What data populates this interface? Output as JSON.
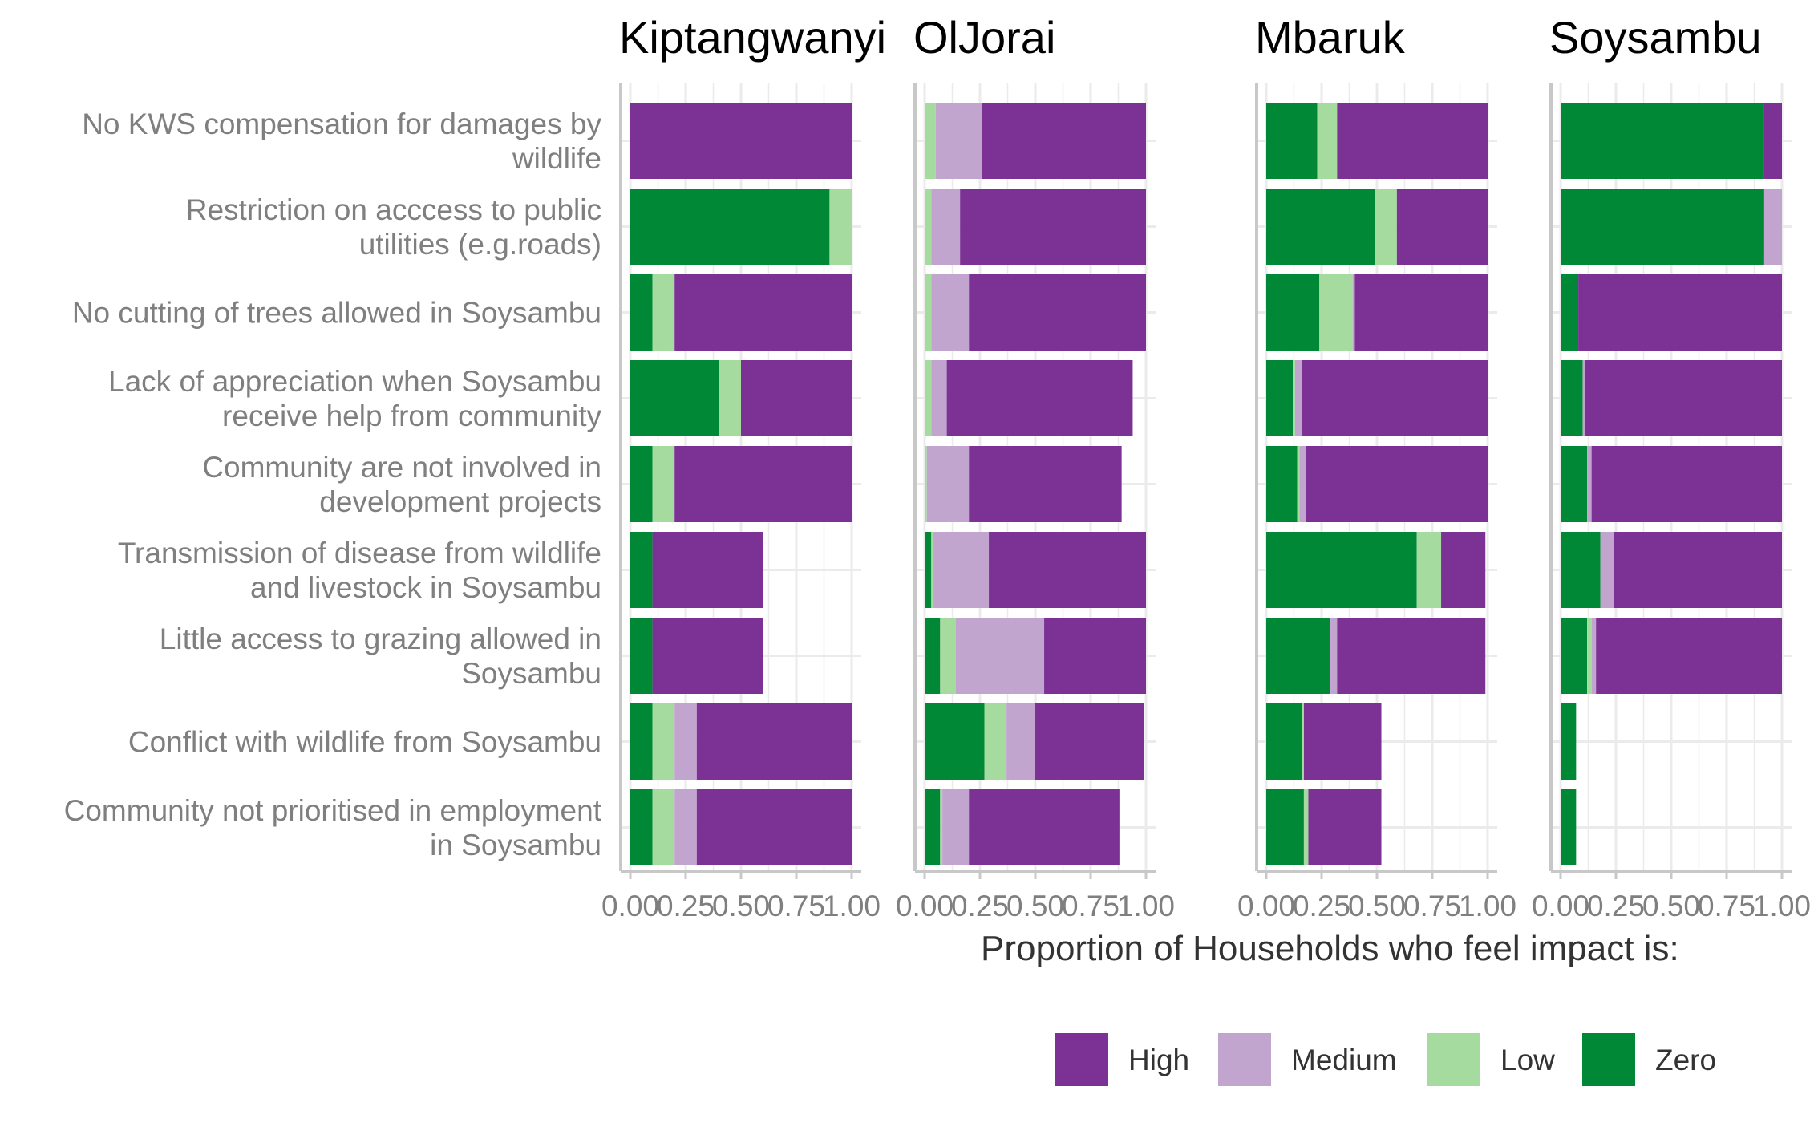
{
  "chart_data": {
    "type": "bar",
    "orientation": "horizontal",
    "stacked": true,
    "xlabel": "Proportion of Households who feel impact is:",
    "ylabel": "",
    "xlim": [
      0,
      1
    ],
    "x_ticks": [
      "0.00",
      "0.25",
      "0.50",
      "0.75",
      "1.00"
    ],
    "grid": true,
    "legend_position": "bottom",
    "stack_order": [
      "Zero",
      "Low",
      "Medium",
      "High"
    ],
    "legend": [
      {
        "name": "High",
        "color": "#7b3294"
      },
      {
        "name": "Medium",
        "color": "#c2a5cf"
      },
      {
        "name": "Low",
        "color": "#a6dba0"
      },
      {
        "name": "Zero",
        "color": "#008837"
      }
    ],
    "categories": [
      "No KWS compensation for damages by\nwildlife",
      "Restriction on acccess to public\nutilities (e.g.roads)",
      "No cutting of trees allowed in Soysambu",
      "Lack of appreciation when Soysambu\nreceive help from community",
      "Community are not involved in\ndevelopment projects",
      "Transmission of disease from wildlife\nand livestock in Soysambu",
      "Little access to grazing allowed in\nSoysambu",
      "Conflict with wildlife from Soysambu",
      "Community not prioritised in employment\nin Soysambu"
    ],
    "facets": [
      {
        "title": "Kiptangwanyi",
        "series": [
          {
            "name": "Zero",
            "values": [
              0.0,
              0.9,
              0.1,
              0.4,
              0.1,
              0.1,
              0.1,
              0.1,
              0.1
            ]
          },
          {
            "name": "Low",
            "values": [
              0.0,
              0.1,
              0.1,
              0.1,
              0.1,
              0.0,
              0.0,
              0.1,
              0.1
            ]
          },
          {
            "name": "Medium",
            "values": [
              0.0,
              0.0,
              0.0,
              0.0,
              0.0,
              0.0,
              0.0,
              0.1,
              0.1
            ]
          },
          {
            "name": "High",
            "values": [
              1.0,
              0.0,
              0.8,
              0.5,
              0.8,
              0.5,
              0.5,
              0.7,
              0.7
            ]
          }
        ]
      },
      {
        "title": "OlJorai",
        "series": [
          {
            "name": "Zero",
            "values": [
              0.0,
              0.0,
              0.0,
              0.0,
              0.0,
              0.03,
              0.07,
              0.27,
              0.07
            ]
          },
          {
            "name": "Low",
            "values": [
              0.05,
              0.03,
              0.03,
              0.03,
              0.01,
              0.01,
              0.07,
              0.1,
              0.01
            ]
          },
          {
            "name": "Medium",
            "values": [
              0.21,
              0.13,
              0.17,
              0.07,
              0.19,
              0.25,
              0.4,
              0.13,
              0.12
            ]
          },
          {
            "name": "High",
            "values": [
              0.74,
              0.84,
              0.8,
              0.84,
              0.69,
              0.71,
              0.46,
              0.49,
              0.68
            ]
          }
        ]
      },
      {
        "title": "Mbaruk",
        "series": [
          {
            "name": "Zero",
            "values": [
              0.23,
              0.49,
              0.24,
              0.12,
              0.14,
              0.68,
              0.29,
              0.16,
              0.17
            ]
          },
          {
            "name": "Low",
            "values": [
              0.09,
              0.1,
              0.15,
              0.01,
              0.01,
              0.11,
              0.0,
              0.01,
              0.02
            ]
          },
          {
            "name": "Medium",
            "values": [
              0.0,
              0.0,
              0.01,
              0.03,
              0.03,
              0.0,
              0.03,
              0.0,
              0.0
            ]
          },
          {
            "name": "High",
            "values": [
              0.68,
              0.41,
              0.6,
              0.84,
              0.82,
              0.2,
              0.67,
              0.35,
              0.33
            ]
          }
        ]
      },
      {
        "title": "Soysambu",
        "series": [
          {
            "name": "Zero",
            "values": [
              0.92,
              0.92,
              0.08,
              0.1,
              0.12,
              0.18,
              0.12,
              0.07,
              0.07
            ]
          },
          {
            "name": "Low",
            "values": [
              0.0,
              0.0,
              0.0,
              0.0,
              0.0,
              0.0,
              0.02,
              0.0,
              0.0
            ]
          },
          {
            "name": "Medium",
            "values": [
              0.0,
              0.08,
              0.0,
              0.01,
              0.02,
              0.06,
              0.02,
              0.0,
              0.0
            ]
          },
          {
            "name": "High",
            "values": [
              0.08,
              0.0,
              0.92,
              0.89,
              0.86,
              0.76,
              0.84,
              0.0,
              0.0
            ]
          }
        ]
      }
    ]
  }
}
